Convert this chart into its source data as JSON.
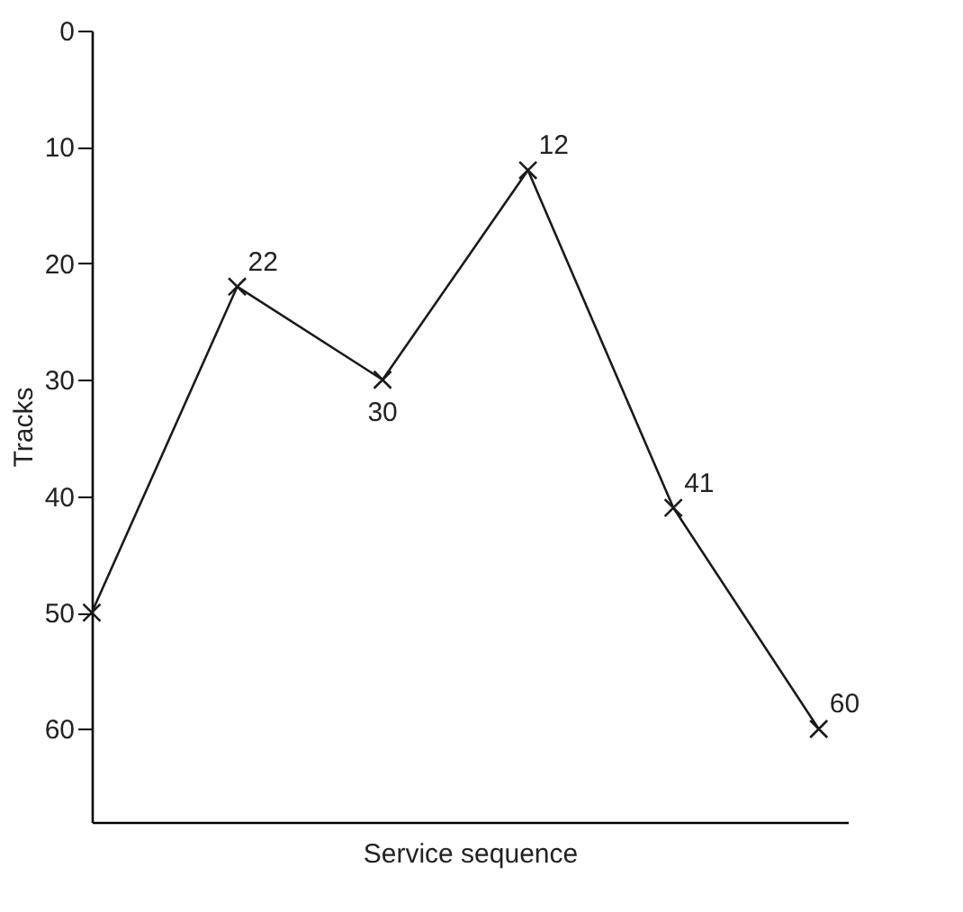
{
  "chart_data": {
    "type": "line",
    "xlabel": "Service sequence",
    "ylabel": "Tracks",
    "categories": [
      null,
      null,
      null,
      null,
      null,
      null
    ],
    "series": [
      {
        "color": "#1a1a1a",
        "values": [
          50,
          22,
          30,
          12,
          41,
          60
        ]
      }
    ],
    "value_labels": [
      null,
      "22",
      "30",
      "12",
      "41",
      "60"
    ],
    "ylim": [
      68,
      0
    ],
    "yticks": [
      0,
      10,
      20,
      30,
      40,
      50,
      60
    ],
    "marker": "cross",
    "line_style": "solid",
    "grid": false,
    "legend": false
  }
}
